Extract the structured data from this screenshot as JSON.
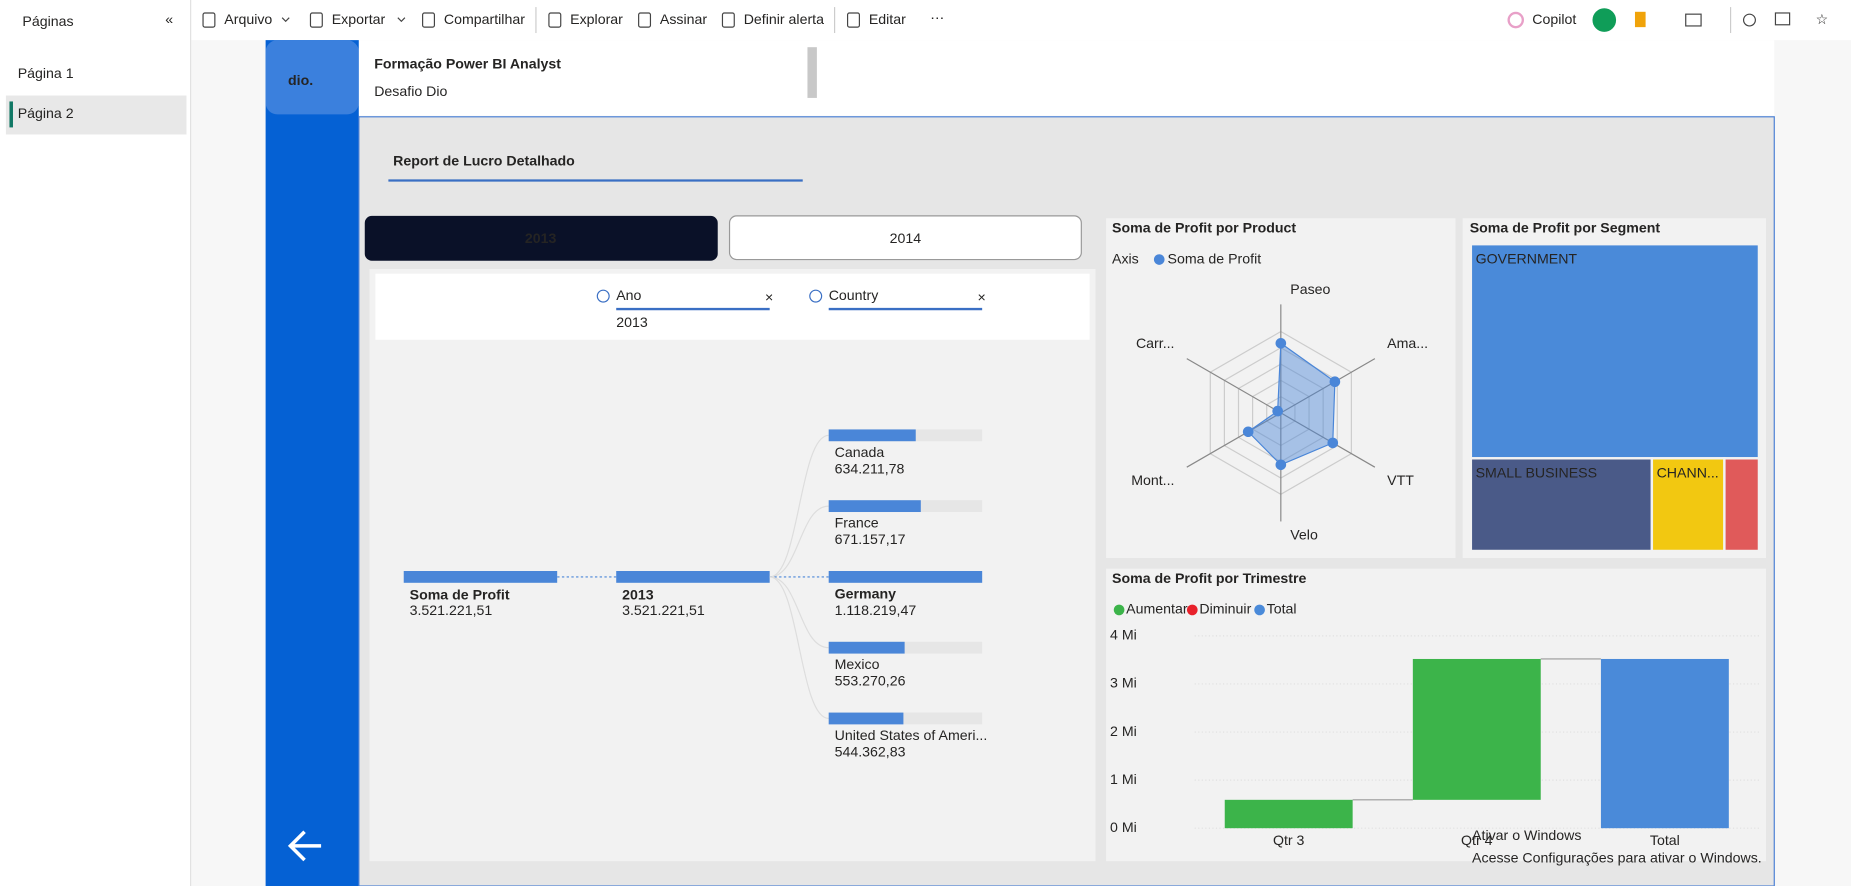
{
  "toolbar": {
    "items": [
      "Arquivo",
      "Exportar",
      "Compartilhar",
      "Explorar",
      "Assinar",
      "Definir alerta",
      "Editar"
    ],
    "copilot": "Copilot"
  },
  "sidebar": {
    "title": "Páginas",
    "pages": [
      "Página 1",
      "Página 2"
    ]
  },
  "header": {
    "title": "Formação Power BI Analyst",
    "subtitle": "Desafio Dio"
  },
  "report": {
    "title": "Report  de Lucro Detalhado",
    "year_buttons": [
      "2013",
      "2014"
    ],
    "decomposition": {
      "filters": [
        {
          "field": "Ano",
          "value": "2013"
        },
        {
          "field": "Country"
        }
      ],
      "nodes": [
        {
          "label": "Soma de Profit",
          "value": 3521221.51,
          "value_label": "3.521.221,51"
        },
        {
          "label": "2013",
          "value": 3521221.51,
          "value_label": "3.521.221,51"
        }
      ],
      "countries": [
        {
          "label": "Canada",
          "value": 634211.78,
          "value_label": "634.211,78"
        },
        {
          "label": "France",
          "value": 671157.17,
          "value_label": "671.157,17"
        },
        {
          "label": "Germany",
          "value": 1118219.47,
          "value_label": "1.118.219,47"
        },
        {
          "label": "Mexico",
          "value": 553270.26,
          "value_label": "553.270,26"
        },
        {
          "label": "United States of Ameri...",
          "value": 544362.83,
          "value_label": "544.362,83"
        }
      ]
    },
    "radar": {
      "title": "Soma de Profit por Product",
      "legend_title": "Axis",
      "series_name": "Soma de Profit",
      "color": "#4a86d8",
      "categories": [
        "Paseo",
        "Ama...",
        "VTT",
        "Velo",
        "Mont...",
        "Carr..."
      ],
      "values": [
        860000,
        770000,
        740000,
        640000,
        465000,
        45000
      ],
      "rlim": [
        0,
        1340000
      ]
    },
    "treemap": {
      "title": "Soma de Profit por Segment",
      "categories": [
        "GOVERNMENT",
        "SMALL BUSINESS",
        "CHANN...",
        null
      ],
      "values": [
        2450000,
        666000,
        267000,
        127000
      ],
      "colors": [
        "#4a8ad9",
        "#4a5a88",
        "#f2c811",
        "#e05a5a"
      ]
    },
    "waterfall": {
      "title": "Soma de Profit por Trimestre",
      "legend": [
        {
          "name": "Aumentar",
          "color": "#3cb44a"
        },
        {
          "name": "Diminuir",
          "color": "#e8212b"
        },
        {
          "name": "Total",
          "color": "#4a8ad9"
        }
      ],
      "categories": [
        "Qtr 3",
        "Qtr 4",
        "Total"
      ],
      "values": [
        590000,
        2930000,
        3520000
      ],
      "ylim": [
        0,
        4000000
      ],
      "yticks": [
        {
          "value": 0,
          "label": "0 Mi"
        },
        {
          "value": 1000000,
          "label": "1 Mi"
        },
        {
          "value": 2000000,
          "label": "2 Mi"
        },
        {
          "value": 3000000,
          "label": "3 Mi"
        },
        {
          "value": 4000000,
          "label": "4 Mi"
        }
      ]
    }
  },
  "watermark": {
    "title": "Ativar o Windows",
    "text": "Acesse Configurações para ativar o Windows."
  }
}
